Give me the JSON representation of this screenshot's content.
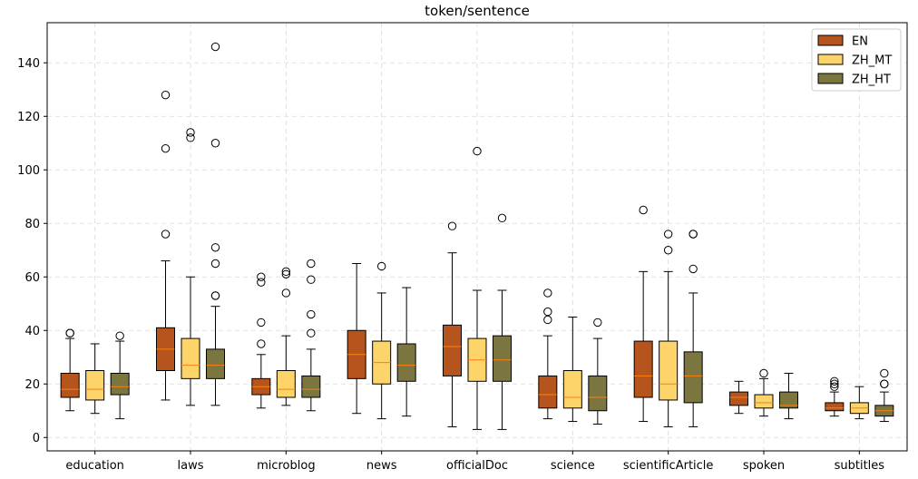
{
  "chart_data": {
    "type": "box",
    "title": "token/sentence",
    "xlabel": "",
    "ylabel": "",
    "ylim": [
      -5,
      155
    ],
    "yticks": [
      0,
      20,
      40,
      60,
      80,
      100,
      120,
      140
    ],
    "grid": true,
    "legend_position": "top-right",
    "categories": [
      "education",
      "laws",
      "microblog",
      "news",
      "officialDoc",
      "science",
      "scientificArticle",
      "spoken",
      "subtitles"
    ],
    "series": [
      {
        "name": "EN",
        "color": "#b5541c",
        "boxes": [
          {
            "whisker_low": 10,
            "q1": 15,
            "median": 18,
            "q3": 24,
            "whisker_high": 37,
            "outliers": [
              39,
              39
            ]
          },
          {
            "whisker_low": 14,
            "q1": 25,
            "median": 33,
            "q3": 41,
            "whisker_high": 66,
            "outliers": [
              76,
              108,
              128
            ]
          },
          {
            "whisker_low": 11,
            "q1": 16,
            "median": 19,
            "q3": 22,
            "whisker_high": 31,
            "outliers": [
              35,
              43,
              58,
              60
            ]
          },
          {
            "whisker_low": 9,
            "q1": 22,
            "median": 31,
            "q3": 40,
            "whisker_high": 65,
            "outliers": []
          },
          {
            "whisker_low": 4,
            "q1": 23,
            "median": 34,
            "q3": 42,
            "whisker_high": 69,
            "outliers": [
              79
            ]
          },
          {
            "whisker_low": 7,
            "q1": 11,
            "median": 16,
            "q3": 23,
            "whisker_high": 38,
            "outliers": [
              44,
              47,
              54
            ]
          },
          {
            "whisker_low": 6,
            "q1": 15,
            "median": 23,
            "q3": 36,
            "whisker_high": 62,
            "outliers": [
              85
            ]
          },
          {
            "whisker_low": 9,
            "q1": 12,
            "median": 15,
            "q3": 17,
            "whisker_high": 21,
            "outliers": []
          },
          {
            "whisker_low": 8,
            "q1": 10,
            "median": 11,
            "q3": 13,
            "whisker_high": 17,
            "outliers": [
              19,
              20,
              21
            ]
          }
        ]
      },
      {
        "name": "ZH_MT",
        "color": "#fcd469",
        "boxes": [
          {
            "whisker_low": 9,
            "q1": 14,
            "median": 18,
            "q3": 25,
            "whisker_high": 35,
            "outliers": []
          },
          {
            "whisker_low": 12,
            "q1": 22,
            "median": 27,
            "q3": 37,
            "whisker_high": 60,
            "outliers": [
              112,
              114
            ]
          },
          {
            "whisker_low": 12,
            "q1": 15,
            "median": 18,
            "q3": 25,
            "whisker_high": 38,
            "outliers": [
              54,
              61,
              62
            ]
          },
          {
            "whisker_low": 7,
            "q1": 20,
            "median": 28,
            "q3": 36,
            "whisker_high": 54,
            "outliers": [
              64
            ]
          },
          {
            "whisker_low": 3,
            "q1": 21,
            "median": 29,
            "q3": 37,
            "whisker_high": 55,
            "outliers": [
              107
            ]
          },
          {
            "whisker_low": 6,
            "q1": 11,
            "median": 15,
            "q3": 25,
            "whisker_high": 45,
            "outliers": []
          },
          {
            "whisker_low": 4,
            "q1": 14,
            "median": 20,
            "q3": 36,
            "whisker_high": 62,
            "outliers": [
              70,
              76
            ]
          },
          {
            "whisker_low": 8,
            "q1": 11,
            "median": 13,
            "q3": 16,
            "whisker_high": 22,
            "outliers": [
              24
            ]
          },
          {
            "whisker_low": 7,
            "q1": 9,
            "median": 11,
            "q3": 13,
            "whisker_high": 19,
            "outliers": []
          }
        ]
      },
      {
        "name": "ZH_HT",
        "color": "#7b7540",
        "boxes": [
          {
            "whisker_low": 7,
            "q1": 16,
            "median": 19,
            "q3": 24,
            "whisker_high": 36,
            "outliers": [
              38
            ]
          },
          {
            "whisker_low": 12,
            "q1": 22,
            "median": 27,
            "q3": 33,
            "whisker_high": 49,
            "outliers": [
              53,
              53,
              65,
              71,
              110,
              146
            ]
          },
          {
            "whisker_low": 10,
            "q1": 15,
            "median": 18,
            "q3": 23,
            "whisker_high": 33,
            "outliers": [
              39,
              46,
              59,
              65
            ]
          },
          {
            "whisker_low": 8,
            "q1": 21,
            "median": 27,
            "q3": 35,
            "whisker_high": 56,
            "outliers": []
          },
          {
            "whisker_low": 3,
            "q1": 21,
            "median": 29,
            "q3": 38,
            "whisker_high": 55,
            "outliers": [
              82
            ]
          },
          {
            "whisker_low": 5,
            "q1": 10,
            "median": 15,
            "q3": 23,
            "whisker_high": 37,
            "outliers": [
              43
            ]
          },
          {
            "whisker_low": 4,
            "q1": 13,
            "median": 23,
            "q3": 32,
            "whisker_high": 54,
            "outliers": [
              63,
              76,
              76
            ]
          },
          {
            "whisker_low": 7,
            "q1": 11,
            "median": 12,
            "q3": 17,
            "whisker_high": 24,
            "outliers": []
          },
          {
            "whisker_low": 6,
            "q1": 8,
            "median": 10,
            "q3": 12,
            "whisker_high": 17,
            "outliers": [
              20,
              20,
              24
            ]
          }
        ]
      }
    ],
    "median_color": "#ff7f0e"
  }
}
